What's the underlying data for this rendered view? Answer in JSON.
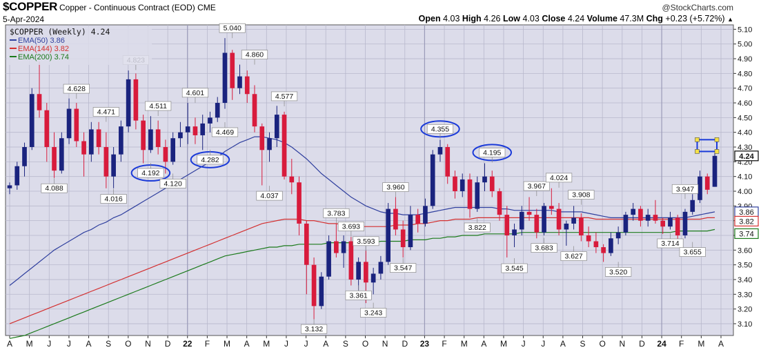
{
  "header": {
    "symbol": "$COPPER",
    "contract": "Copper - Continuous Contract (EOD)",
    "exchange": "CME",
    "date": "5-Apr-2024",
    "brand": "@StockCharts.com",
    "ohlc": {
      "open_label": "Open",
      "open": "4.03",
      "high_label": "High",
      "high": "4.26",
      "low_label": "Low",
      "low": "4.03",
      "close_label": "Close",
      "close": "4.24",
      "volume_label": "Volume",
      "volume": "47.3M",
      "chg_label": "Chg",
      "chg": "+0.23 (+5.72%)"
    }
  },
  "chart_data": {
    "type": "candlestick",
    "title": "$COPPER (Weekly) 4.24",
    "ylim": [
      3.02,
      5.13
    ],
    "y_ticks": [
      3.1,
      3.2,
      3.3,
      3.4,
      3.5,
      3.6,
      3.7,
      3.8,
      3.9,
      4.0,
      4.1,
      4.2,
      4.3,
      4.4,
      4.5,
      4.6,
      4.7,
      4.8,
      4.9,
      5.0,
      5.1
    ],
    "y_tick_labels": [
      "3.10",
      "3.20",
      "3.30",
      "3.40",
      "3.50",
      "3.60",
      "3.70",
      "3.80",
      "3.90",
      "4.00",
      "4.10",
      "4.20",
      "4.30",
      "4.40",
      "4.50",
      "4.60",
      "4.70",
      "4.80",
      "4.90",
      "5.00",
      "5.10"
    ],
    "grid": true,
    "legend_position": "top-left",
    "x_months": [
      "A",
      "M",
      "J",
      "J",
      "A",
      "S",
      "O",
      "N",
      "D",
      "22",
      "F",
      "M",
      "A",
      "M",
      "J",
      "J",
      "A",
      "S",
      "O",
      "N",
      "D",
      "23",
      "F",
      "M",
      "A",
      "M",
      "J",
      "J",
      "A",
      "S",
      "O",
      "N",
      "D",
      "24",
      "F",
      "M",
      "A"
    ],
    "x_bold": [
      "22",
      "23",
      "24"
    ],
    "colors": {
      "up": "#1a237e",
      "down": "#d81b3c",
      "ema50": "#2f3f9e",
      "ema144": "#d32f2f",
      "ema200": "#1b7a1b",
      "background": "#dcdcea",
      "grid": "#b8b8cc"
    },
    "legend": [
      {
        "label": "EMA(50) 3.86",
        "color": "#2f3f9e"
      },
      {
        "label": "EMA(144) 3.82",
        "color": "#d32f2f"
      },
      {
        "label": "EMA(200) 3.74",
        "color": "#1b7a1b"
      }
    ],
    "last_value_tags": [
      {
        "text": "4.24",
        "value": 4.24,
        "border": "#000000",
        "bold": true
      },
      {
        "text": "3.86",
        "value": 3.86,
        "border": "#2f3f9e",
        "bold": false
      },
      {
        "text": "3.82",
        "value": 3.82,
        "border": "#d32f2f",
        "bold": false
      },
      {
        "text": "3.74",
        "value": 3.74,
        "border": "#1b7a1b",
        "bold": false
      }
    ],
    "annotations": [
      {
        "text": "4.088",
        "week": 6,
        "value": 4.088,
        "pos": "below",
        "circled": false
      },
      {
        "text": "4.628",
        "week": 9,
        "value": 4.628,
        "pos": "above",
        "circled": false
      },
      {
        "text": "4.016",
        "week": 14,
        "value": 4.016,
        "pos": "below",
        "circled": false
      },
      {
        "text": "4.471",
        "week": 13,
        "value": 4.471,
        "pos": "above",
        "circled": false
      },
      {
        "text": "4.823",
        "week": 17,
        "value": 4.823,
        "pos": "above",
        "circled": false
      },
      {
        "text": "4.192",
        "week": 19,
        "value": 4.192,
        "pos": "below",
        "circled": true
      },
      {
        "text": "4.511",
        "week": 20,
        "value": 4.511,
        "pos": "above",
        "circled": false
      },
      {
        "text": "4.120",
        "week": 22,
        "value": 4.12,
        "pos": "below",
        "circled": false
      },
      {
        "text": "4.601",
        "week": 25,
        "value": 4.601,
        "pos": "above",
        "circled": false
      },
      {
        "text": "4.282",
        "week": 27,
        "value": 4.282,
        "pos": "below",
        "circled": true
      },
      {
        "text": "4.469",
        "week": 29,
        "value": 4.469,
        "pos": "below",
        "circled": false
      },
      {
        "text": "5.040",
        "week": 30,
        "value": 5.04,
        "pos": "above",
        "circled": false
      },
      {
        "text": "4.860",
        "week": 33,
        "value": 4.86,
        "pos": "above",
        "circled": false
      },
      {
        "text": "4.577",
        "week": 37,
        "value": 4.577,
        "pos": "above",
        "circled": false
      },
      {
        "text": "4.037",
        "week": 35,
        "value": 4.037,
        "pos": "below",
        "circled": false
      },
      {
        "text": "3.132",
        "week": 41,
        "value": 3.132,
        "pos": "below",
        "circled": false
      },
      {
        "text": "3.783",
        "week": 44,
        "value": 3.783,
        "pos": "above",
        "circled": false
      },
      {
        "text": "3.693",
        "week": 46,
        "value": 3.693,
        "pos": "above",
        "circled": false
      },
      {
        "text": "3.593",
        "week": 48,
        "value": 3.593,
        "pos": "above",
        "circled": false
      },
      {
        "text": "3.361",
        "week": 47,
        "value": 3.361,
        "pos": "below",
        "circled": false
      },
      {
        "text": "3.243",
        "week": 49,
        "value": 3.243,
        "pos": "below",
        "circled": false
      },
      {
        "text": "3.960",
        "week": 52,
        "value": 3.96,
        "pos": "above",
        "circled": false
      },
      {
        "text": "3.547",
        "week": 53,
        "value": 3.547,
        "pos": "below",
        "circled": false
      },
      {
        "text": "4.355",
        "week": 58,
        "value": 4.355,
        "pos": "above",
        "circled": true
      },
      {
        "text": "3.822",
        "week": 63,
        "value": 3.822,
        "pos": "below",
        "circled": false
      },
      {
        "text": "4.195",
        "week": 65,
        "value": 4.195,
        "pos": "above",
        "circled": true
      },
      {
        "text": "3.967",
        "week": 71,
        "value": 3.967,
        "pos": "above",
        "circled": false
      },
      {
        "text": "3.545",
        "week": 68,
        "value": 3.545,
        "pos": "below",
        "circled": false
      },
      {
        "text": "4.024",
        "week": 74,
        "value": 4.024,
        "pos": "above",
        "circled": false
      },
      {
        "text": "3.683",
        "week": 72,
        "value": 3.683,
        "pos": "below",
        "circled": false
      },
      {
        "text": "3.908",
        "week": 77,
        "value": 3.908,
        "pos": "above",
        "circled": false
      },
      {
        "text": "3.627",
        "week": 76,
        "value": 3.627,
        "pos": "below",
        "circled": false
      },
      {
        "text": "3.520",
        "week": 82,
        "value": 3.52,
        "pos": "below",
        "circled": false
      },
      {
        "text": "3.947",
        "week": 91,
        "value": 3.947,
        "pos": "above",
        "circled": false
      },
      {
        "text": "3.714",
        "week": 89,
        "value": 3.714,
        "pos": "below",
        "circled": false
      },
      {
        "text": "3.655",
        "week": 92,
        "value": 3.655,
        "pos": "below",
        "circled": false
      }
    ],
    "candles": [
      [
        4.02,
        4.06,
        3.98,
        4.04
      ],
      [
        4.04,
        4.2,
        4.01,
        4.17
      ],
      [
        4.17,
        4.33,
        4.1,
        4.3
      ],
      [
        4.3,
        4.7,
        4.28,
        4.66
      ],
      [
        4.66,
        4.88,
        4.5,
        4.55
      ],
      [
        4.55,
        4.6,
        4.2,
        4.3
      ],
      [
        4.3,
        4.4,
        4.09,
        4.14
      ],
      [
        4.14,
        4.4,
        4.12,
        4.36
      ],
      [
        4.36,
        4.63,
        4.32,
        4.56
      ],
      [
        4.56,
        4.6,
        4.3,
        4.34
      ],
      [
        4.34,
        4.4,
        4.1,
        4.25
      ],
      [
        4.25,
        4.47,
        4.2,
        4.42
      ],
      [
        4.42,
        4.47,
        4.25,
        4.3
      ],
      [
        4.3,
        4.4,
        4.02,
        4.1
      ],
      [
        4.1,
        4.3,
        4.02,
        4.25
      ],
      [
        4.25,
        4.48,
        4.2,
        4.44
      ],
      [
        4.44,
        4.82,
        4.4,
        4.76
      ],
      [
        4.76,
        4.8,
        4.42,
        4.48
      ],
      [
        4.48,
        4.52,
        4.19,
        4.28
      ],
      [
        4.28,
        4.51,
        4.26,
        4.42
      ],
      [
        4.42,
        4.48,
        4.25,
        4.3
      ],
      [
        4.3,
        4.35,
        4.12,
        4.2
      ],
      [
        4.2,
        4.4,
        4.18,
        4.36
      ],
      [
        4.36,
        4.47,
        4.3,
        4.4
      ],
      [
        4.4,
        4.6,
        4.32,
        4.44
      ],
      [
        4.44,
        4.5,
        4.32,
        4.38
      ],
      [
        4.38,
        4.52,
        4.28,
        4.46
      ],
      [
        4.46,
        4.54,
        4.4,
        4.5
      ],
      [
        4.5,
        4.64,
        4.47,
        4.6
      ],
      [
        4.6,
        5.04,
        4.56,
        4.94
      ],
      [
        4.94,
        4.96,
        4.62,
        4.7
      ],
      [
        4.7,
        4.86,
        4.66,
        4.78
      ],
      [
        4.78,
        4.82,
        4.6,
        4.66
      ],
      [
        4.66,
        4.72,
        4.4,
        4.44
      ],
      [
        4.44,
        4.46,
        4.04,
        4.28
      ],
      [
        4.28,
        4.4,
        4.2,
        4.36
      ],
      [
        4.36,
        4.58,
        4.3,
        4.52
      ],
      [
        4.52,
        4.54,
        4.08,
        4.1
      ],
      [
        4.1,
        4.22,
        3.98,
        4.06
      ],
      [
        4.06,
        4.1,
        3.7,
        3.78
      ],
      [
        3.78,
        3.8,
        3.3,
        3.5
      ],
      [
        3.5,
        3.55,
        3.13,
        3.22
      ],
      [
        3.22,
        3.45,
        3.2,
        3.42
      ],
      [
        3.42,
        3.7,
        3.4,
        3.66
      ],
      [
        3.66,
        3.78,
        3.55,
        3.58
      ],
      [
        3.58,
        3.7,
        3.48,
        3.66
      ],
      [
        3.66,
        3.69,
        3.36,
        3.4
      ],
      [
        3.4,
        3.55,
        3.3,
        3.52
      ],
      [
        3.52,
        3.6,
        3.24,
        3.38
      ],
      [
        3.38,
        3.48,
        3.3,
        3.44
      ],
      [
        3.44,
        3.56,
        3.4,
        3.52
      ],
      [
        3.52,
        3.92,
        3.5,
        3.88
      ],
      [
        3.88,
        3.96,
        3.7,
        3.74
      ],
      [
        3.74,
        3.8,
        3.55,
        3.62
      ],
      [
        3.62,
        3.9,
        3.6,
        3.84
      ],
      [
        3.84,
        3.88,
        3.72,
        3.78
      ],
      [
        3.78,
        3.95,
        3.76,
        3.9
      ],
      [
        3.9,
        4.28,
        3.88,
        4.25
      ],
      [
        4.25,
        4.35,
        4.2,
        4.3
      ],
      [
        4.3,
        4.32,
        4.05,
        4.1
      ],
      [
        4.1,
        4.14,
        3.95,
        4.0
      ],
      [
        4.0,
        4.12,
        3.96,
        4.08
      ],
      [
        4.08,
        4.12,
        3.82,
        3.88
      ],
      [
        3.88,
        4.1,
        3.86,
        4.06
      ],
      [
        4.06,
        4.19,
        4.0,
        4.1
      ],
      [
        4.1,
        4.14,
        3.96,
        4.0
      ],
      [
        4.0,
        4.02,
        3.8,
        3.84
      ],
      [
        3.84,
        3.9,
        3.55,
        3.7
      ],
      [
        3.7,
        3.78,
        3.62,
        3.74
      ],
      [
        3.74,
        3.9,
        3.7,
        3.86
      ],
      [
        3.86,
        3.96,
        3.8,
        3.84
      ],
      [
        3.84,
        3.88,
        3.68,
        3.72
      ],
      [
        3.72,
        3.92,
        3.7,
        3.9
      ],
      [
        3.9,
        4.02,
        3.84,
        3.88
      ],
      [
        3.88,
        3.92,
        3.7,
        3.74
      ],
      [
        3.74,
        3.8,
        3.63,
        3.78
      ],
      [
        3.78,
        3.9,
        3.74,
        3.82
      ],
      [
        3.82,
        3.85,
        3.66,
        3.7
      ],
      [
        3.7,
        3.76,
        3.62,
        3.66
      ],
      [
        3.66,
        3.72,
        3.58,
        3.62
      ],
      [
        3.62,
        3.64,
        3.52,
        3.58
      ],
      [
        3.58,
        3.72,
        3.56,
        3.68
      ],
      [
        3.68,
        3.76,
        3.64,
        3.72
      ],
      [
        3.72,
        3.86,
        3.7,
        3.84
      ],
      [
        3.84,
        3.92,
        3.8,
        3.88
      ],
      [
        3.88,
        3.9,
        3.76,
        3.8
      ],
      [
        3.8,
        3.88,
        3.76,
        3.84
      ],
      [
        3.84,
        3.94,
        3.78,
        3.8
      ],
      [
        3.8,
        3.82,
        3.71,
        3.76
      ],
      [
        3.76,
        3.86,
        3.74,
        3.82
      ],
      [
        3.82,
        3.84,
        3.66,
        3.7
      ],
      [
        3.7,
        3.88,
        3.68,
        3.86
      ],
      [
        3.86,
        3.98,
        3.84,
        3.94
      ],
      [
        3.94,
        4.14,
        3.92,
        4.1
      ],
      [
        4.1,
        4.12,
        3.98,
        4.01
      ],
      [
        4.03,
        4.26,
        4.03,
        4.24
      ]
    ],
    "ema50": [
      3.36,
      3.4,
      3.44,
      3.48,
      3.52,
      3.56,
      3.6,
      3.63,
      3.66,
      3.69,
      3.72,
      3.74,
      3.77,
      3.79,
      3.82,
      3.84,
      3.87,
      3.9,
      3.93,
      3.96,
      3.99,
      4.02,
      4.05,
      4.08,
      4.11,
      4.14,
      4.17,
      4.2,
      4.23,
      4.27,
      4.3,
      4.33,
      4.35,
      4.37,
      4.37,
      4.36,
      4.35,
      4.33,
      4.3,
      4.26,
      4.22,
      4.17,
      4.12,
      4.08,
      4.04,
      4.0,
      3.96,
      3.93,
      3.9,
      3.88,
      3.86,
      3.85,
      3.85,
      3.84,
      3.84,
      3.84,
      3.85,
      3.86,
      3.87,
      3.88,
      3.89,
      3.89,
      3.89,
      3.89,
      3.89,
      3.89,
      3.88,
      3.88,
      3.87,
      3.87,
      3.87,
      3.87,
      3.87,
      3.87,
      3.86,
      3.86,
      3.86,
      3.86,
      3.85,
      3.84,
      3.83,
      3.82,
      3.82,
      3.82,
      3.82,
      3.82,
      3.82,
      3.82,
      3.82,
      3.82,
      3.82,
      3.82,
      3.83,
      3.84,
      3.85,
      3.86
    ],
    "ema144": [
      3.1,
      3.12,
      3.14,
      3.16,
      3.18,
      3.2,
      3.22,
      3.24,
      3.26,
      3.28,
      3.3,
      3.32,
      3.34,
      3.36,
      3.38,
      3.4,
      3.42,
      3.44,
      3.46,
      3.48,
      3.5,
      3.52,
      3.54,
      3.56,
      3.58,
      3.6,
      3.62,
      3.64,
      3.66,
      3.68,
      3.7,
      3.72,
      3.74,
      3.76,
      3.78,
      3.79,
      3.8,
      3.81,
      3.81,
      3.81,
      3.8,
      3.8,
      3.79,
      3.78,
      3.78,
      3.77,
      3.76,
      3.76,
      3.76,
      3.76,
      3.76,
      3.76,
      3.77,
      3.77,
      3.77,
      3.78,
      3.78,
      3.79,
      3.8,
      3.8,
      3.81,
      3.81,
      3.81,
      3.82,
      3.82,
      3.82,
      3.82,
      3.82,
      3.82,
      3.82,
      3.82,
      3.82,
      3.82,
      3.82,
      3.82,
      3.82,
      3.82,
      3.82,
      3.82,
      3.81,
      3.81,
      3.81,
      3.81,
      3.81,
      3.81,
      3.81,
      3.81,
      3.81,
      3.81,
      3.81,
      3.81,
      3.81,
      3.81,
      3.81,
      3.82,
      3.82
    ],
    "ema200": [
      3.0,
      3.01,
      3.02,
      3.04,
      3.06,
      3.08,
      3.1,
      3.12,
      3.14,
      3.16,
      3.18,
      3.2,
      3.22,
      3.24,
      3.26,
      3.28,
      3.3,
      3.32,
      3.34,
      3.36,
      3.38,
      3.4,
      3.42,
      3.44,
      3.46,
      3.48,
      3.5,
      3.52,
      3.54,
      3.56,
      3.57,
      3.58,
      3.59,
      3.6,
      3.61,
      3.62,
      3.62,
      3.63,
      3.63,
      3.64,
      3.64,
      3.64,
      3.64,
      3.65,
      3.65,
      3.65,
      3.65,
      3.65,
      3.65,
      3.65,
      3.66,
      3.66,
      3.66,
      3.66,
      3.67,
      3.67,
      3.67,
      3.68,
      3.68,
      3.69,
      3.69,
      3.7,
      3.7,
      3.7,
      3.71,
      3.71,
      3.71,
      3.71,
      3.71,
      3.72,
      3.72,
      3.72,
      3.72,
      3.72,
      3.72,
      3.72,
      3.72,
      3.72,
      3.72,
      3.72,
      3.72,
      3.72,
      3.72,
      3.72,
      3.72,
      3.72,
      3.72,
      3.72,
      3.72,
      3.72,
      3.73,
      3.73,
      3.73,
      3.73,
      3.73,
      3.74
    ],
    "highlight_box": {
      "value_top": 4.35,
      "value_bottom": 4.27,
      "border": "#1a3ad8",
      "fill": "#f4e04a"
    }
  }
}
